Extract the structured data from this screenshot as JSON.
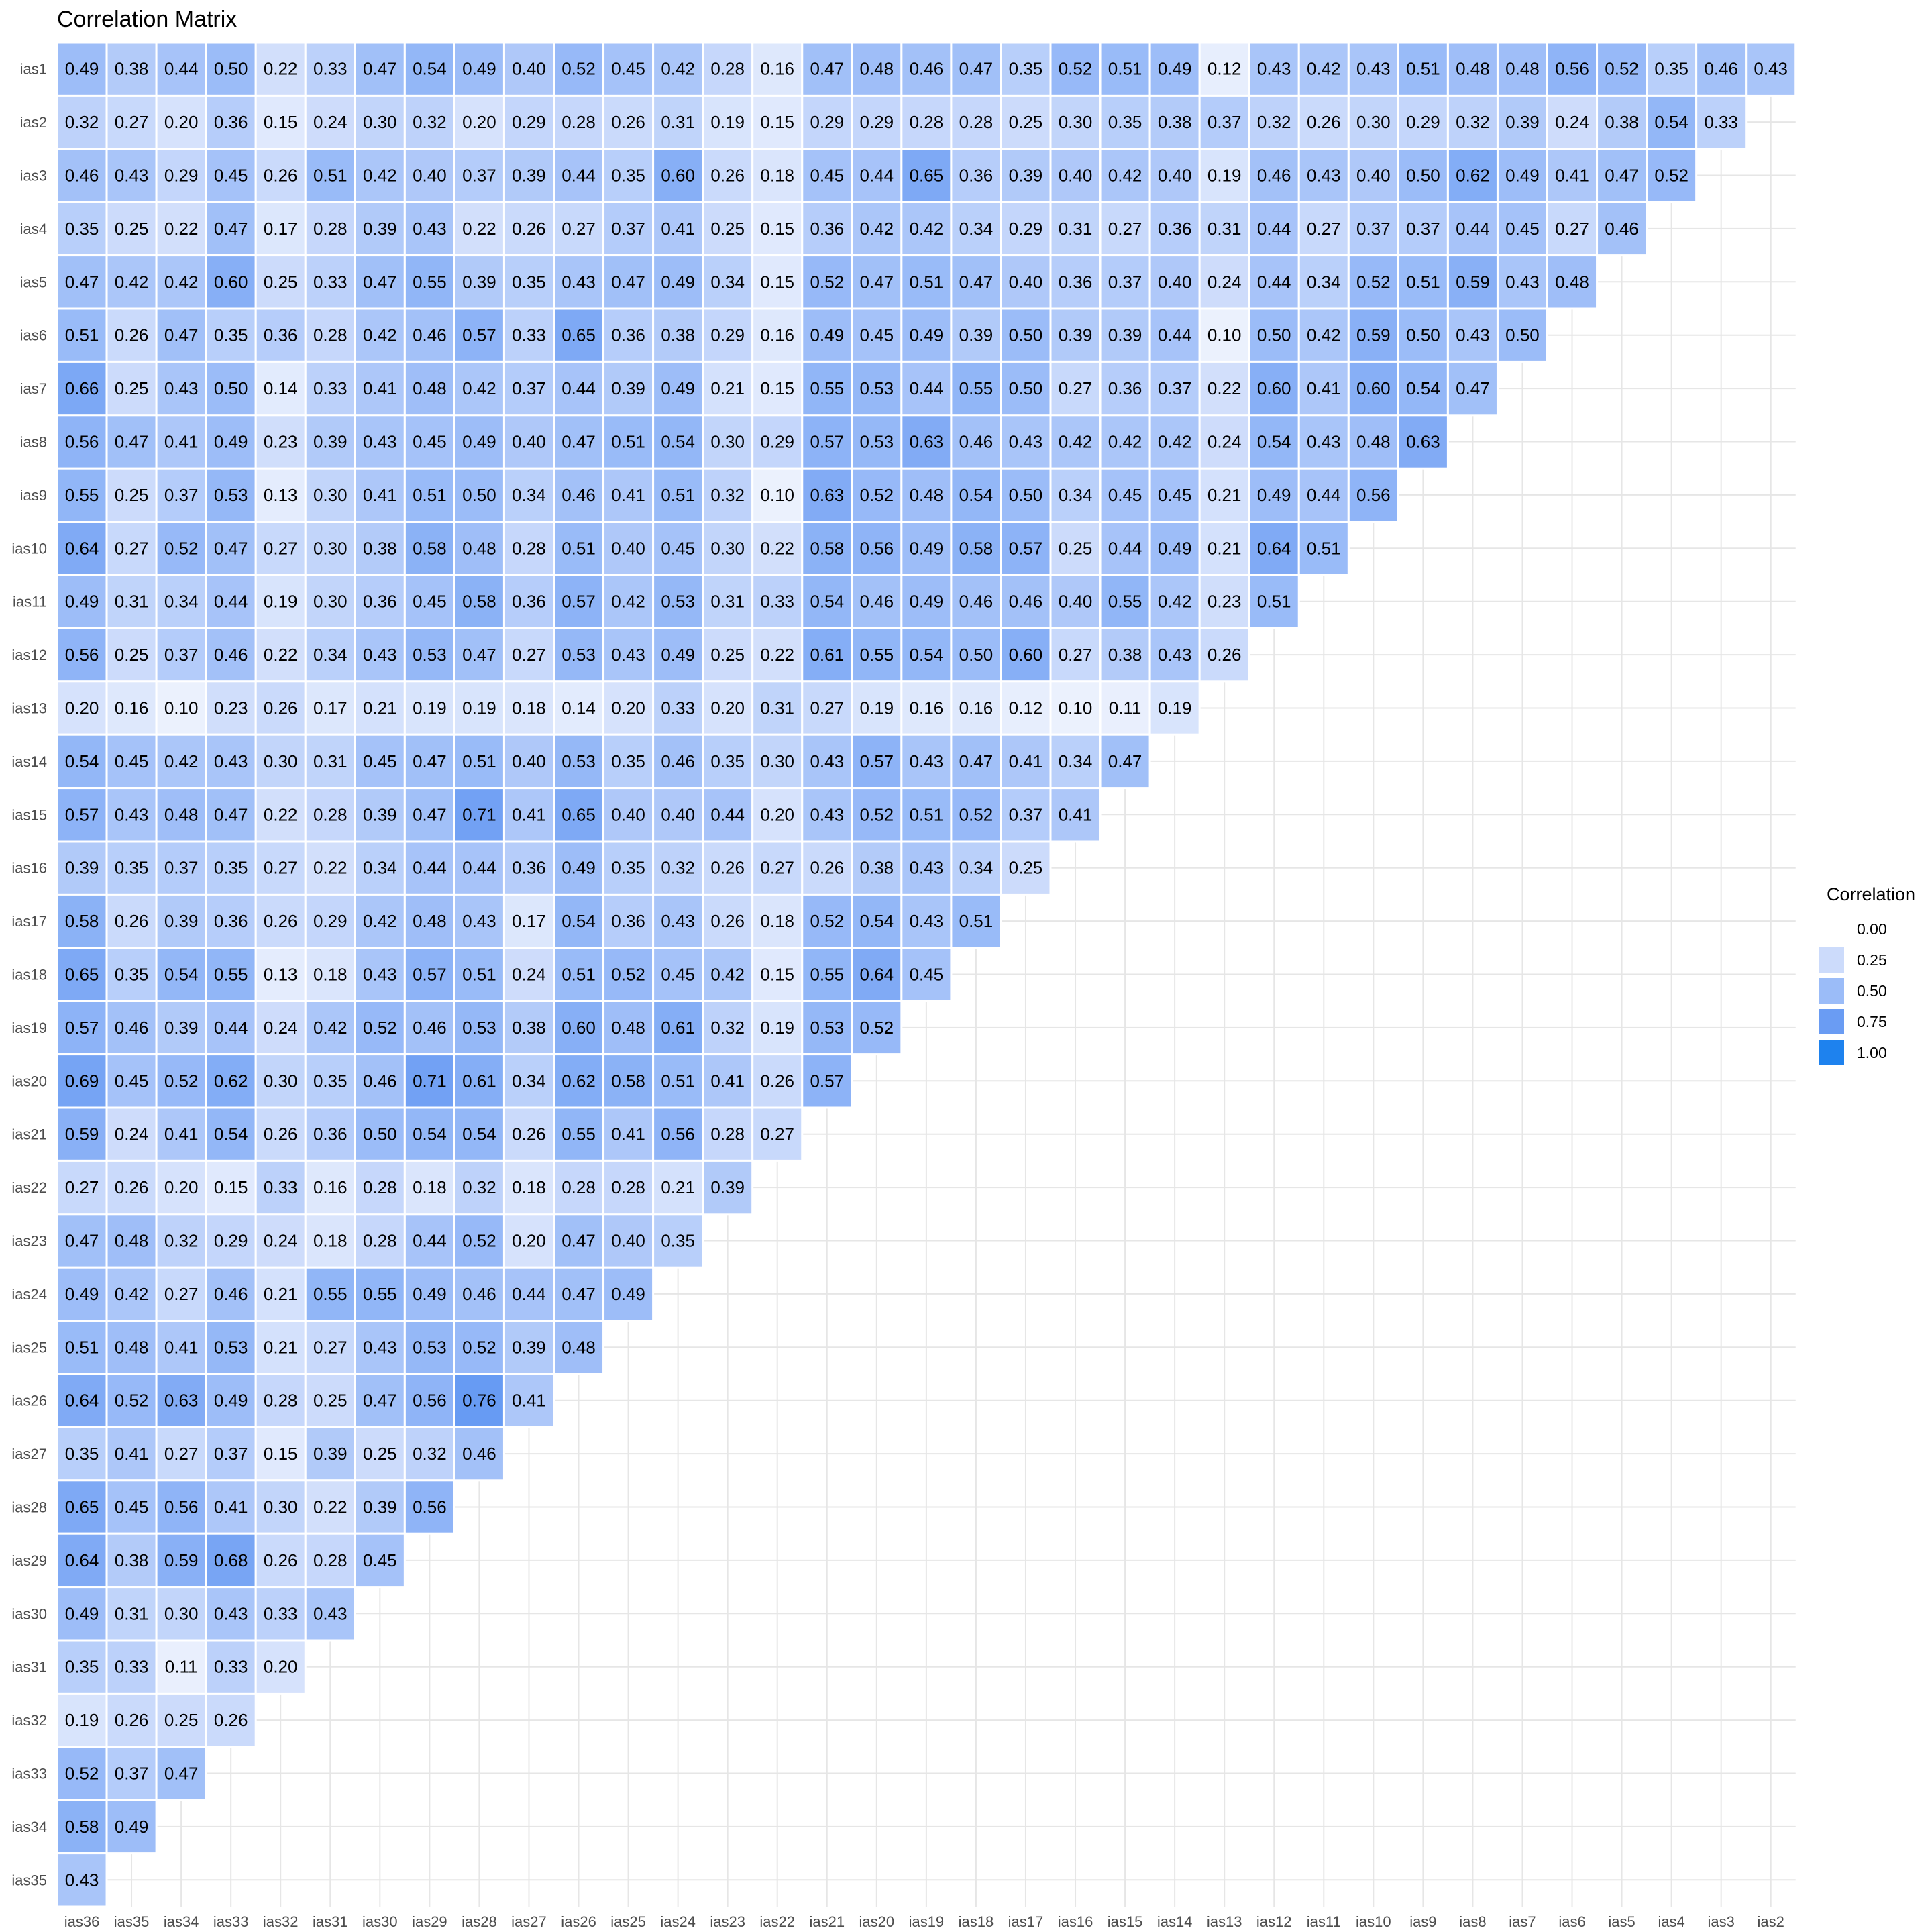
{
  "chart_data": {
    "type": "heatmap",
    "title": "Correlation Matrix",
    "xlabel": "",
    "ylabel": "",
    "columns": [
      "ias36",
      "ias35",
      "ias34",
      "ias33",
      "ias32",
      "ias31",
      "ias30",
      "ias29",
      "ias28",
      "ias27",
      "ias26",
      "ias25",
      "ias24",
      "ias23",
      "ias22",
      "ias21",
      "ias20",
      "ias19",
      "ias18",
      "ias17",
      "ias16",
      "ias15",
      "ias14",
      "ias13",
      "ias12",
      "ias11",
      "ias10",
      "ias9",
      "ias8",
      "ias7",
      "ias6",
      "ias5",
      "ias4",
      "ias3",
      "ias2"
    ],
    "rows": [
      "ias1",
      "ias2",
      "ias3",
      "ias4",
      "ias5",
      "ias6",
      "ias7",
      "ias8",
      "ias9",
      "ias10",
      "ias11",
      "ias12",
      "ias13",
      "ias14",
      "ias15",
      "ias16",
      "ias17",
      "ias18",
      "ias19",
      "ias20",
      "ias21",
      "ias22",
      "ias23",
      "ias24",
      "ias25",
      "ias26",
      "ias27",
      "ias28",
      "ias29",
      "ias30",
      "ias31",
      "ias32",
      "ias33",
      "ias34",
      "ias35"
    ],
    "values": [
      [
        0.49,
        0.38,
        0.44,
        0.5,
        0.22,
        0.33,
        0.47,
        0.54,
        0.49,
        0.4,
        0.52,
        0.45,
        0.42,
        0.28,
        0.16,
        0.47,
        0.48,
        0.46,
        0.47,
        0.35,
        0.52,
        0.51,
        0.49,
        0.12,
        0.43,
        0.42,
        0.43,
        0.51,
        0.48,
        0.48,
        0.56,
        0.52,
        0.35,
        0.46,
        0.43
      ],
      [
        0.32,
        0.27,
        0.2,
        0.36,
        0.15,
        0.24,
        0.3,
        0.32,
        0.2,
        0.29,
        0.28,
        0.26,
        0.31,
        0.19,
        0.15,
        0.29,
        0.29,
        0.28,
        0.28,
        0.25,
        0.3,
        0.35,
        0.38,
        0.37,
        0.32,
        0.26,
        0.3,
        0.29,
        0.32,
        0.39,
        0.24,
        0.38,
        0.54,
        0.33
      ],
      [
        0.46,
        0.43,
        0.29,
        0.45,
        0.26,
        0.51,
        0.42,
        0.4,
        0.37,
        0.39,
        0.44,
        0.35,
        0.6,
        0.26,
        0.18,
        0.45,
        0.44,
        0.65,
        0.36,
        0.39,
        0.4,
        0.42,
        0.4,
        0.19,
        0.46,
        0.43,
        0.4,
        0.5,
        0.62,
        0.49,
        0.41,
        0.47,
        0.52
      ],
      [
        0.35,
        0.25,
        0.22,
        0.47,
        0.17,
        0.28,
        0.39,
        0.43,
        0.22,
        0.26,
        0.27,
        0.37,
        0.41,
        0.25,
        0.15,
        0.36,
        0.42,
        0.42,
        0.34,
        0.29,
        0.31,
        0.27,
        0.36,
        0.31,
        0.44,
        0.27,
        0.37,
        0.37,
        0.44,
        0.45,
        0.27,
        0.46
      ],
      [
        0.47,
        0.42,
        0.42,
        0.6,
        0.25,
        0.33,
        0.47,
        0.55,
        0.39,
        0.35,
        0.43,
        0.47,
        0.49,
        0.34,
        0.15,
        0.52,
        0.47,
        0.51,
        0.47,
        0.4,
        0.36,
        0.37,
        0.4,
        0.24,
        0.44,
        0.34,
        0.52,
        0.51,
        0.59,
        0.43,
        0.48
      ],
      [
        0.51,
        0.26,
        0.47,
        0.35,
        0.36,
        0.28,
        0.42,
        0.46,
        0.57,
        0.33,
        0.65,
        0.36,
        0.38,
        0.29,
        0.16,
        0.49,
        0.45,
        0.49,
        0.39,
        0.5,
        0.39,
        0.39,
        0.44,
        0.1,
        0.5,
        0.42,
        0.59,
        0.5,
        0.43,
        0.5
      ],
      [
        0.66,
        0.25,
        0.43,
        0.5,
        0.14,
        0.33,
        0.41,
        0.48,
        0.42,
        0.37,
        0.44,
        0.39,
        0.49,
        0.21,
        0.15,
        0.55,
        0.53,
        0.44,
        0.55,
        0.5,
        0.27,
        0.36,
        0.37,
        0.22,
        0.6,
        0.41,
        0.6,
        0.54,
        0.47
      ],
      [
        0.56,
        0.47,
        0.41,
        0.49,
        0.23,
        0.39,
        0.43,
        0.45,
        0.49,
        0.4,
        0.47,
        0.51,
        0.54,
        0.3,
        0.29,
        0.57,
        0.53,
        0.63,
        0.46,
        0.43,
        0.42,
        0.42,
        0.42,
        0.24,
        0.54,
        0.43,
        0.48,
        0.63
      ],
      [
        0.55,
        0.25,
        0.37,
        0.53,
        0.13,
        0.3,
        0.41,
        0.51,
        0.5,
        0.34,
        0.46,
        0.41,
        0.51,
        0.32,
        0.1,
        0.63,
        0.52,
        0.48,
        0.54,
        0.5,
        0.34,
        0.45,
        0.45,
        0.21,
        0.49,
        0.44,
        0.56
      ],
      [
        0.64,
        0.27,
        0.52,
        0.47,
        0.27,
        0.3,
        0.38,
        0.58,
        0.48,
        0.28,
        0.51,
        0.4,
        0.45,
        0.3,
        0.22,
        0.58,
        0.56,
        0.49,
        0.58,
        0.57,
        0.25,
        0.44,
        0.49,
        0.21,
        0.64,
        0.51
      ],
      [
        0.49,
        0.31,
        0.34,
        0.44,
        0.19,
        0.3,
        0.36,
        0.45,
        0.58,
        0.36,
        0.57,
        0.42,
        0.53,
        0.31,
        0.33,
        0.54,
        0.46,
        0.49,
        0.46,
        0.46,
        0.4,
        0.55,
        0.42,
        0.23,
        0.51
      ],
      [
        0.56,
        0.25,
        0.37,
        0.46,
        0.22,
        0.34,
        0.43,
        0.53,
        0.47,
        0.27,
        0.53,
        0.43,
        0.49,
        0.25,
        0.22,
        0.61,
        0.55,
        0.54,
        0.5,
        0.6,
        0.27,
        0.38,
        0.43,
        0.26
      ],
      [
        0.2,
        0.16,
        0.1,
        0.23,
        0.26,
        0.17,
        0.21,
        0.19,
        0.19,
        0.18,
        0.14,
        0.2,
        0.33,
        0.2,
        0.31,
        0.27,
        0.19,
        0.16,
        0.16,
        0.12,
        0.1,
        0.11,
        0.19
      ],
      [
        0.54,
        0.45,
        0.42,
        0.43,
        0.3,
        0.31,
        0.45,
        0.47,
        0.51,
        0.4,
        0.53,
        0.35,
        0.46,
        0.35,
        0.3,
        0.43,
        0.57,
        0.43,
        0.47,
        0.41,
        0.34,
        0.47
      ],
      [
        0.57,
        0.43,
        0.48,
        0.47,
        0.22,
        0.28,
        0.39,
        0.47,
        0.71,
        0.41,
        0.65,
        0.4,
        0.4,
        0.44,
        0.2,
        0.43,
        0.52,
        0.51,
        0.52,
        0.37,
        0.41
      ],
      [
        0.39,
        0.35,
        0.37,
        0.35,
        0.27,
        0.22,
        0.34,
        0.44,
        0.44,
        0.36,
        0.49,
        0.35,
        0.32,
        0.26,
        0.27,
        0.26,
        0.38,
        0.43,
        0.34,
        0.25
      ],
      [
        0.58,
        0.26,
        0.39,
        0.36,
        0.26,
        0.29,
        0.42,
        0.48,
        0.43,
        0.17,
        0.54,
        0.36,
        0.43,
        0.26,
        0.18,
        0.52,
        0.54,
        0.43,
        0.51
      ],
      [
        0.65,
        0.35,
        0.54,
        0.55,
        0.13,
        0.18,
        0.43,
        0.57,
        0.51,
        0.24,
        0.51,
        0.52,
        0.45,
        0.42,
        0.15,
        0.55,
        0.64,
        0.45
      ],
      [
        0.57,
        0.46,
        0.39,
        0.44,
        0.24,
        0.42,
        0.52,
        0.46,
        0.53,
        0.38,
        0.6,
        0.48,
        0.61,
        0.32,
        0.19,
        0.53,
        0.52
      ],
      [
        0.69,
        0.45,
        0.52,
        0.62,
        0.3,
        0.35,
        0.46,
        0.71,
        0.61,
        0.34,
        0.62,
        0.58,
        0.51,
        0.41,
        0.26,
        0.57
      ],
      [
        0.59,
        0.24,
        0.41,
        0.54,
        0.26,
        0.36,
        0.5,
        0.54,
        0.54,
        0.26,
        0.55,
        0.41,
        0.56,
        0.28,
        0.27
      ],
      [
        0.27,
        0.26,
        0.2,
        0.15,
        0.33,
        0.16,
        0.28,
        0.18,
        0.32,
        0.18,
        0.28,
        0.28,
        0.21,
        0.39
      ],
      [
        0.47,
        0.48,
        0.32,
        0.29,
        0.24,
        0.18,
        0.28,
        0.44,
        0.52,
        0.2,
        0.47,
        0.4,
        0.35
      ],
      [
        0.49,
        0.42,
        0.27,
        0.46,
        0.21,
        0.55,
        0.55,
        0.49,
        0.46,
        0.44,
        0.47,
        0.49
      ],
      [
        0.51,
        0.48,
        0.41,
        0.53,
        0.21,
        0.27,
        0.43,
        0.53,
        0.52,
        0.39,
        0.48
      ],
      [
        0.64,
        0.52,
        0.63,
        0.49,
        0.28,
        0.25,
        0.47,
        0.56,
        0.76,
        0.41
      ],
      [
        0.35,
        0.41,
        0.27,
        0.37,
        0.15,
        0.39,
        0.25,
        0.32,
        0.46
      ],
      [
        0.65,
        0.45,
        0.56,
        0.41,
        0.3,
        0.22,
        0.39,
        0.56
      ],
      [
        0.64,
        0.38,
        0.59,
        0.68,
        0.26,
        0.28,
        0.45
      ],
      [
        0.49,
        0.31,
        0.3,
        0.43,
        0.33,
        0.43
      ],
      [
        0.35,
        0.33,
        0.11,
        0.33,
        0.2
      ],
      [
        0.19,
        0.26,
        0.25,
        0.26
      ],
      [
        0.52,
        0.37,
        0.47
      ],
      [
        0.58,
        0.49
      ],
      [
        0.43
      ]
    ],
    "color_range": [
      0,
      1
    ],
    "grid": true,
    "legend": {
      "title": "Correlation",
      "placement": "right",
      "breaks": [
        "0.00",
        "0.25",
        "0.50",
        "0.75",
        "1.00"
      ],
      "break_values": [
        0,
        0.25,
        0.5,
        0.75,
        1.0
      ],
      "colors": [
        "#ffffff",
        "#ccdbfb",
        "#9bbcf8",
        "#6a9cf3",
        "#1e82ee"
      ]
    }
  }
}
